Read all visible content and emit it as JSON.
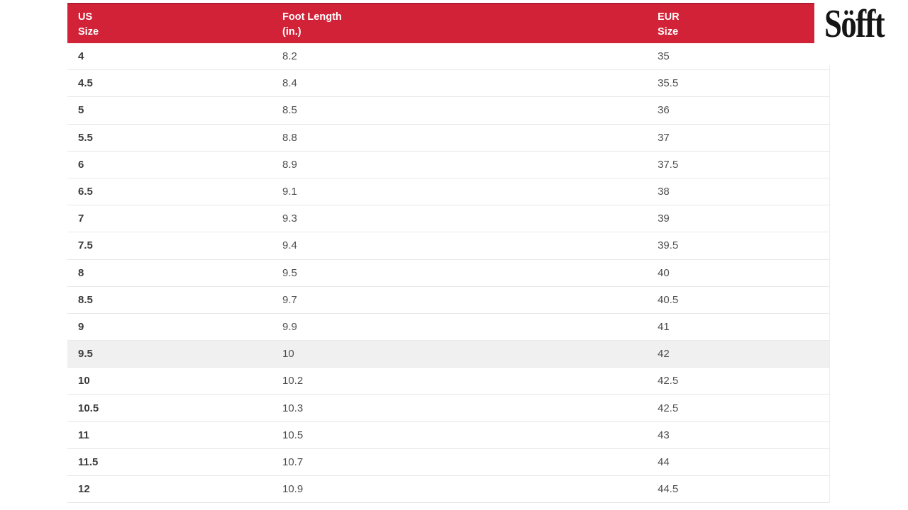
{
  "logo": {
    "text": "Söfft"
  },
  "colors": {
    "header_bg": "#d22237",
    "header_top": "#b01d30",
    "highlight_bg": "#f0f0f0"
  },
  "table": {
    "columns": [
      {
        "line1": "US",
        "line2": "Size"
      },
      {
        "line1": "Foot Length",
        "line2": "(in.)"
      },
      {
        "line1": "EUR",
        "line2": "Size"
      }
    ],
    "rows": [
      {
        "us": "4",
        "foot": "8.2",
        "eur": "35",
        "highlighted": false
      },
      {
        "us": "4.5",
        "foot": "8.4",
        "eur": "35.5",
        "highlighted": false
      },
      {
        "us": "5",
        "foot": "8.5",
        "eur": "36",
        "highlighted": false
      },
      {
        "us": "5.5",
        "foot": "8.8",
        "eur": "37",
        "highlighted": false
      },
      {
        "us": "6",
        "foot": "8.9",
        "eur": "37.5",
        "highlighted": false
      },
      {
        "us": "6.5",
        "foot": "9.1",
        "eur": "38",
        "highlighted": false
      },
      {
        "us": "7",
        "foot": "9.3",
        "eur": "39",
        "highlighted": false
      },
      {
        "us": "7.5",
        "foot": "9.4",
        "eur": "39.5",
        "highlighted": false
      },
      {
        "us": "8",
        "foot": "9.5",
        "eur": "40",
        "highlighted": false
      },
      {
        "us": "8.5",
        "foot": "9.7",
        "eur": "40.5",
        "highlighted": false
      },
      {
        "us": "9",
        "foot": "9.9",
        "eur": "41",
        "highlighted": false
      },
      {
        "us": "9.5",
        "foot": "10",
        "eur": "42",
        "highlighted": true
      },
      {
        "us": "10",
        "foot": "10.2",
        "eur": "42.5",
        "highlighted": false
      },
      {
        "us": "10.5",
        "foot": "10.3",
        "eur": "42.5",
        "highlighted": false
      },
      {
        "us": "11",
        "foot": "10.5",
        "eur": "43",
        "highlighted": false
      },
      {
        "us": "11.5",
        "foot": "10.7",
        "eur": "44",
        "highlighted": false
      },
      {
        "us": "12",
        "foot": "10.9",
        "eur": "44.5",
        "highlighted": false
      }
    ]
  }
}
